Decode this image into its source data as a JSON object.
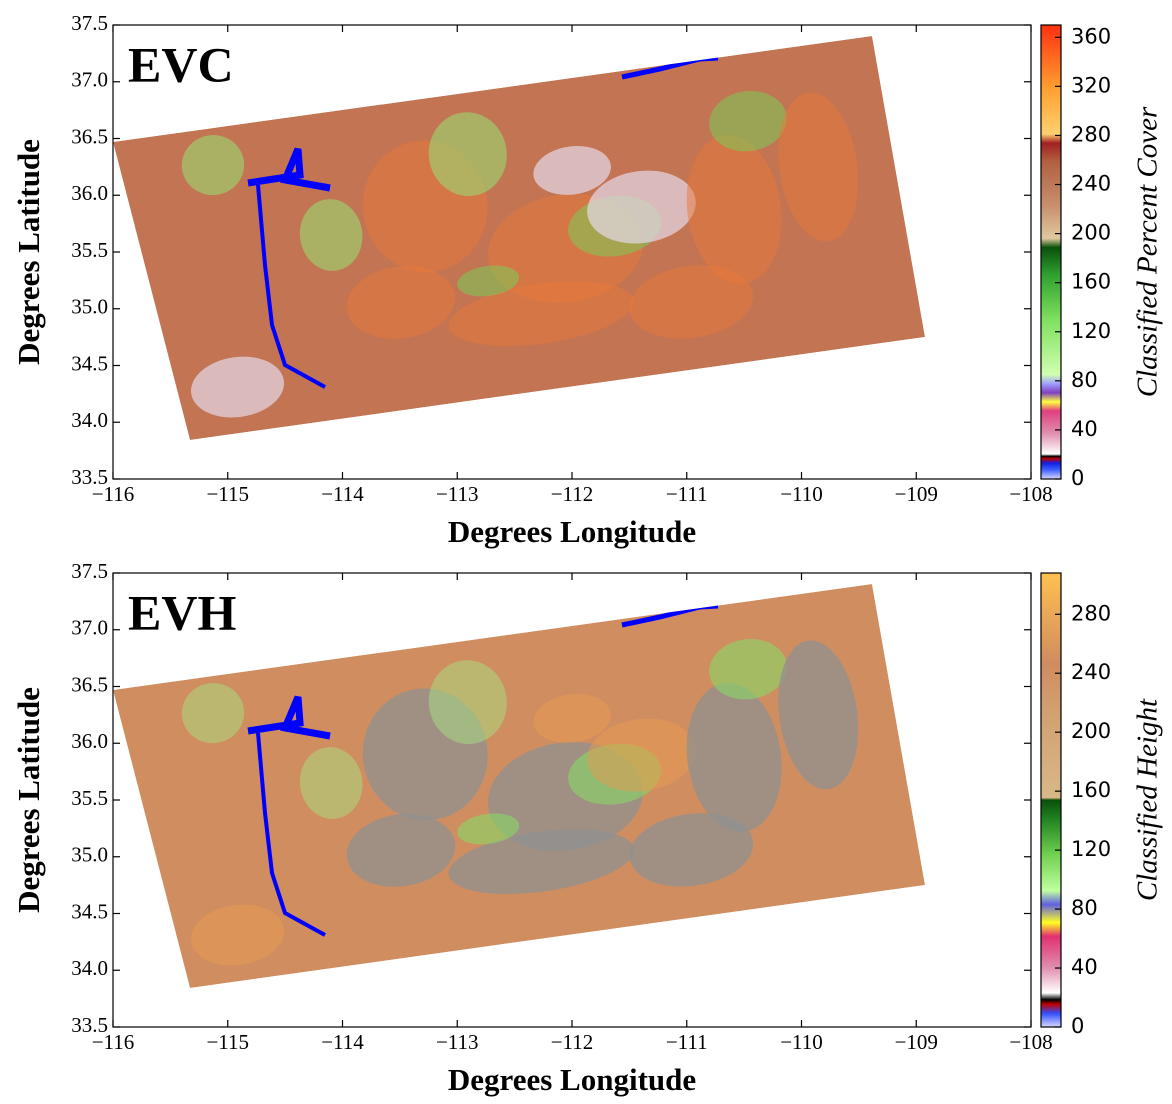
{
  "panels": [
    {
      "label": "EVC",
      "xlabel": "Degrees Longitude",
      "ylabel": "Degrees Latitude",
      "xlim": [
        -116,
        -108
      ],
      "xticks": [
        {
          "value": -116,
          "label": "−116"
        },
        {
          "value": -115,
          "label": "−115"
        },
        {
          "value": -114,
          "label": "−114"
        },
        {
          "value": -113,
          "label": "−113"
        },
        {
          "value": -112,
          "label": "−112"
        },
        {
          "value": -111,
          "label": "−111"
        },
        {
          "value": -110,
          "label": "−110"
        },
        {
          "value": -109,
          "label": "−109"
        },
        {
          "value": -108,
          "label": "−108"
        }
      ],
      "ylim": [
        33.5,
        37.5
      ],
      "yticks": [
        {
          "value": 33.5,
          "label": "33.5"
        },
        {
          "value": 34,
          "label": "34.0"
        },
        {
          "value": 34.5,
          "label": "34.5"
        },
        {
          "value": 35,
          "label": "35.0"
        },
        {
          "value": 35.5,
          "label": "35.5"
        },
        {
          "value": 36,
          "label": "36.0"
        },
        {
          "value": 36.5,
          "label": "36.5"
        },
        {
          "value": 37,
          "label": "37.0"
        },
        {
          "value": 37.5,
          "label": "37.5"
        }
      ],
      "colorbar": {
        "label": "Classified Percent Cover",
        "lim": [
          0,
          370
        ],
        "ticks": [
          0,
          40,
          80,
          120,
          160,
          200,
          240,
          280,
          320,
          360
        ]
      }
    },
    {
      "label": "EVH",
      "xlabel": "Degrees Longitude",
      "ylabel": "Degrees Latitude",
      "xlim": [
        -116,
        -108
      ],
      "xticks": [
        {
          "value": -116,
          "label": "−116"
        },
        {
          "value": -115,
          "label": "−115"
        },
        {
          "value": -114,
          "label": "−114"
        },
        {
          "value": -113,
          "label": "−113"
        },
        {
          "value": -112,
          "label": "−112"
        },
        {
          "value": -111,
          "label": "−111"
        },
        {
          "value": -110,
          "label": "−110"
        },
        {
          "value": -109,
          "label": "−109"
        },
        {
          "value": -108,
          "label": "−108"
        }
      ],
      "ylim": [
        33.5,
        37.5
      ],
      "yticks": [
        {
          "value": 33.5,
          "label": "33.5"
        },
        {
          "value": 34,
          "label": "34.0"
        },
        {
          "value": 34.5,
          "label": "34.5"
        },
        {
          "value": 35,
          "label": "35.0"
        },
        {
          "value": 35.5,
          "label": "35.5"
        },
        {
          "value": 36,
          "label": "36.0"
        },
        {
          "value": 36.5,
          "label": "36.5"
        },
        {
          "value": 37,
          "label": "37.0"
        },
        {
          "value": 37.5,
          "label": "37.5"
        }
      ],
      "colorbar": {
        "label": "Classified Height",
        "lim": [
          0,
          308
        ],
        "ticks": [
          0,
          40,
          80,
          120,
          160,
          200,
          240,
          280
        ]
      }
    }
  ]
}
